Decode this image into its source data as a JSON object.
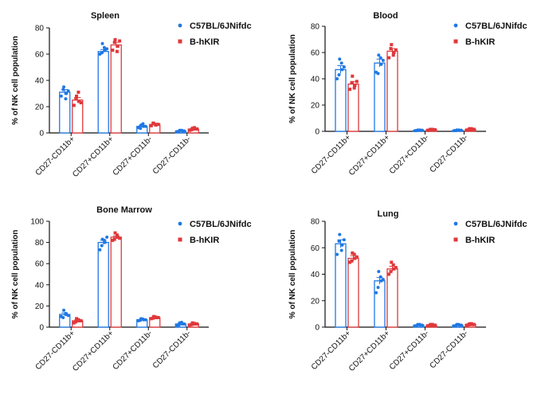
{
  "colors": {
    "series_a": "#1f78e4",
    "series_b": "#e0383b",
    "axis": "#111111"
  },
  "chart_data": [
    {
      "type": "bar",
      "title": "Spleen",
      "ylabel": "% of NK cell population",
      "ylim": [
        0,
        80
      ],
      "yticks": [
        0,
        20,
        40,
        60,
        80
      ],
      "categories": [
        "CD27-CD11b+",
        "CD27+CD11b+",
        "CD27+CD11b-",
        "CD27-CD11b-"
      ],
      "legend_position": "top-right",
      "series": [
        {
          "name": "C57BL/6JNifdc",
          "values": [
            31,
            62,
            5,
            1.5
          ],
          "error": [
            2,
            1.5,
            0.8,
            0.4
          ],
          "points": [
            [
              28,
              35,
              30,
              33,
              26,
              32
            ],
            [
              60,
              68,
              63,
              61,
              65,
              64
            ],
            [
              4,
              6,
              5,
              3.5,
              7,
              5
            ],
            [
              1,
              2,
              1.5,
              1,
              2,
              1.5
            ]
          ]
        },
        {
          "name": "B-hKIR",
          "values": [
            25,
            67,
            6.5,
            3
          ],
          "error": [
            2,
            2,
            0.6,
            0.5
          ],
          "points": [
            [
              21,
              28,
              24,
              26,
              31,
              23
            ],
            [
              63,
              71,
              66,
              69,
              62,
              70
            ],
            [
              5.5,
              7,
              6.5,
              7.5,
              6,
              6.5
            ],
            [
              2,
              3.5,
              3,
              2.5,
              4,
              3
            ]
          ]
        }
      ]
    },
    {
      "type": "bar",
      "title": "Blood",
      "ylabel": "% of NK cell population",
      "ylim": [
        0,
        80
      ],
      "yticks": [
        0,
        20,
        40,
        60,
        80
      ],
      "categories": [
        "CD27-CD11b+",
        "CD27+CD11b+",
        "CD27+CD11b-",
        "CD27-CD11b-"
      ],
      "legend_position": "top-right",
      "series": [
        {
          "name": "C57BL/6JNifdc",
          "values": [
            47,
            52,
            0.8,
            0.8
          ],
          "error": [
            3,
            3,
            0.2,
            0.2
          ],
          "points": [
            [
              40,
              55,
              47,
              43,
              52,
              49
            ],
            [
              45,
              58,
              51,
              44,
              56,
              54
            ],
            [
              0.5,
              1,
              0.8,
              0.6,
              1,
              0.8
            ],
            [
              0.5,
              1,
              0.8,
              0.6,
              1,
              0.8
            ]
          ]
        },
        {
          "name": "B-hKIR",
          "values": [
            36,
            61,
            1.2,
            1.5
          ],
          "error": [
            2,
            2,
            0.3,
            0.3
          ],
          "points": [
            [
              32,
              42,
              35,
              37,
              33,
              38
            ],
            [
              56,
              66,
              60,
              63,
              58,
              62
            ],
            [
              0.8,
              1.5,
              1.2,
              1,
              1.5,
              1.2
            ],
            [
              1,
              2,
              1.5,
              1.2,
              2,
              1.5
            ]
          ]
        }
      ]
    },
    {
      "type": "bar",
      "title": "Bone Marrow",
      "ylabel": "% of NK cell population",
      "ylim": [
        0,
        100
      ],
      "yticks": [
        0,
        20,
        40,
        60,
        80,
        100
      ],
      "categories": [
        "CD27-CD11b+",
        "CD27+CD11b+",
        "CD27+CD11b-",
        "CD27-CD11b-"
      ],
      "legend_position": "top-right",
      "series": [
        {
          "name": "C57BL/6JNifdc",
          "values": [
            12,
            80,
            7,
            3
          ],
          "error": [
            1.5,
            2,
            0.5,
            0.6
          ],
          "points": [
            [
              10,
              16,
              12,
              9,
              13,
              11
            ],
            [
              73,
              83,
              80,
              77,
              82,
              85
            ],
            [
              6,
              8,
              7,
              6.5,
              7.5,
              7
            ],
            [
              1.5,
              4,
              3,
              2,
              4.5,
              3
            ]
          ]
        },
        {
          "name": "B-hKIR",
          "values": [
            6,
            85,
            9,
            3
          ],
          "error": [
            0.8,
            1.2,
            0.5,
            0.5
          ],
          "points": [
            [
              4,
              8,
              6,
              5,
              7,
              6
            ],
            [
              82,
              89,
              85,
              83,
              87,
              84
            ],
            [
              8,
              10,
              9,
              8.5,
              9.5,
              9
            ],
            [
              2,
              4,
              3,
              2.5,
              3.5,
              3
            ]
          ]
        }
      ]
    },
    {
      "type": "bar",
      "title": "Lung",
      "ylabel": "% of NK cell population",
      "ylim": [
        0,
        80
      ],
      "yticks": [
        0,
        20,
        40,
        60,
        80
      ],
      "categories": [
        "CD27-CD11b+",
        "CD27+CD11b+",
        "CD27+CD11b-",
        "CD27-CD11b-"
      ],
      "legend_position": "top-right",
      "series": [
        {
          "name": "C57BL/6JNifdc",
          "values": [
            63,
            35,
            1.5,
            1.5
          ],
          "error": [
            3,
            2.5,
            0.3,
            0.3
          ],
          "points": [
            [
              55,
              70,
              62,
              65,
              58,
              66
            ],
            [
              26,
              42,
              35,
              30,
              38,
              36
            ],
            [
              1,
              2,
              1.5,
              1.2,
              2,
              1.5
            ],
            [
              1,
              2,
              1.5,
              1.2,
              2,
              1.5
            ]
          ]
        },
        {
          "name": "B-hKIR",
          "values": [
            52,
            44,
            1.5,
            2
          ],
          "error": [
            2,
            2,
            0.3,
            0.3
          ],
          "points": [
            [
              49,
              56,
              52,
              50,
              55,
              53
            ],
            [
              40,
              49,
              44,
              42,
              47,
              45
            ],
            [
              1,
              2,
              1.5,
              1.2,
              2,
              1.5
            ],
            [
              1.5,
              2.5,
              2,
              1.8,
              2.6,
              2
            ]
          ]
        }
      ]
    }
  ]
}
